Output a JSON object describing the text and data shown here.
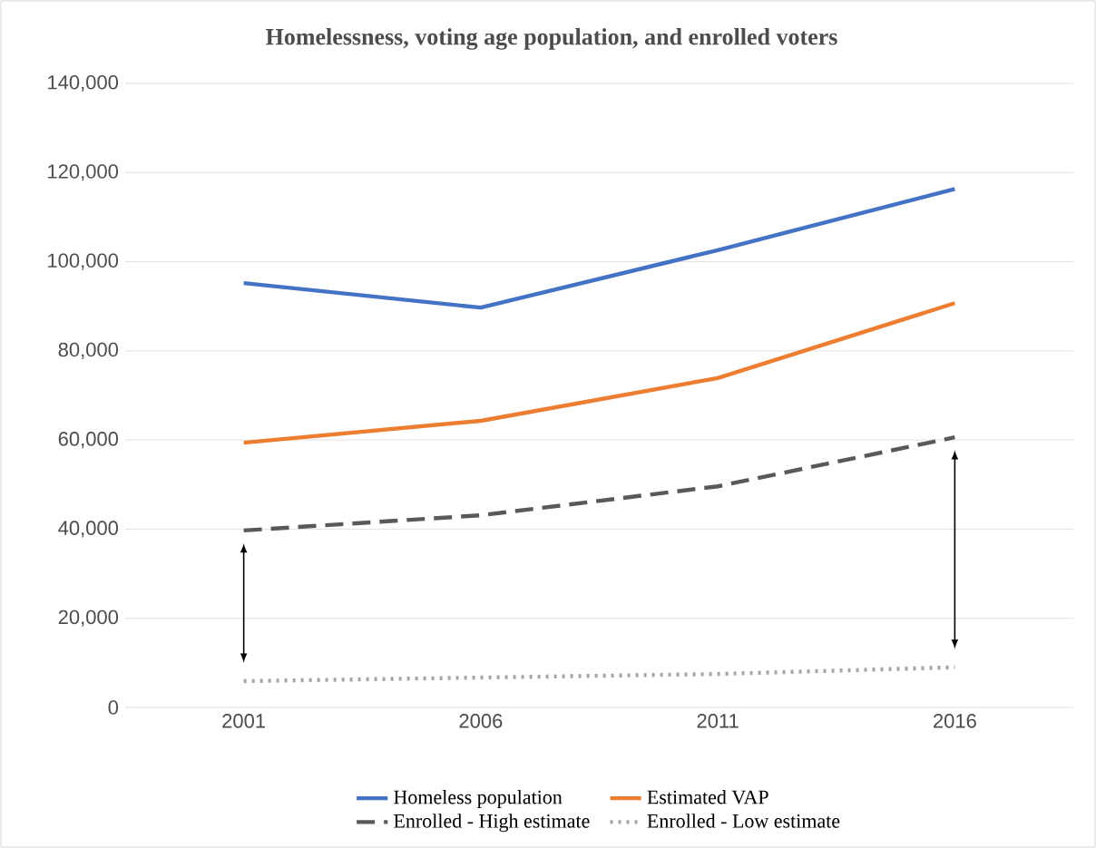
{
  "chart_data": {
    "type": "line",
    "title": "Homelessness, voting age population, and enrolled voters",
    "categories": [
      "2001",
      "2006",
      "2011",
      "2016"
    ],
    "series": [
      {
        "name": "Homeless population",
        "color": "#4472c4",
        "values": [
          95200,
          89700,
          102600,
          116300
        ],
        "line_style": "solid"
      },
      {
        "name": "Estimated VAP",
        "color": "#ed7d31",
        "values": [
          59400,
          64300,
          73900,
          90700
        ],
        "line_style": "solid"
      },
      {
        "name": "Enrolled - High estimate",
        "color": "#595959",
        "values": [
          39700,
          43100,
          49600,
          60600
        ],
        "line_style": "dashed"
      },
      {
        "name": "Enrolled - Low estimate",
        "color": "#a5a5a5",
        "values": [
          5900,
          6700,
          7500,
          9000
        ],
        "line_style": "dotted"
      }
    ],
    "ylim": [
      0,
      140000
    ],
    "yticks": [
      {
        "value": 0,
        "label": "0"
      },
      {
        "value": 20000,
        "label": "20,000"
      },
      {
        "value": 40000,
        "label": "40,000"
      },
      {
        "value": 60000,
        "label": "60,000"
      },
      {
        "value": 80000,
        "label": "80,000"
      },
      {
        "value": 100000,
        "label": "100,000"
      },
      {
        "value": 120000,
        "label": "120,000"
      },
      {
        "value": 140000,
        "label": "140,000"
      }
    ],
    "grid": "y",
    "legend": "bottom",
    "marker": "none"
  }
}
